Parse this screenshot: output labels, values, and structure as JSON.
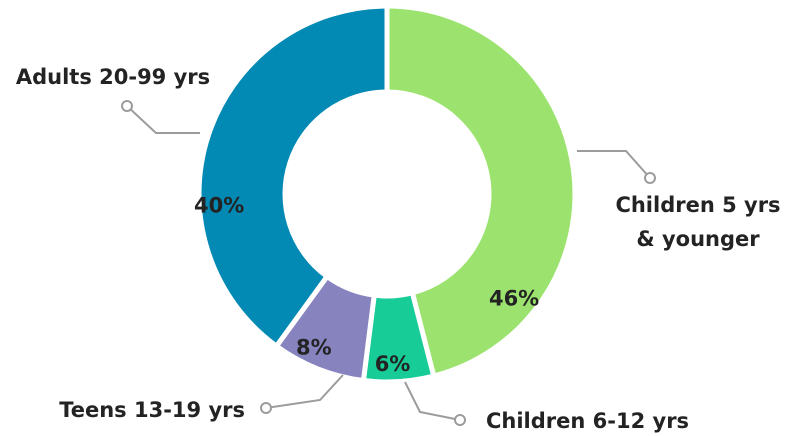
{
  "chart_data": {
    "type": "pie",
    "donut": true,
    "title": "",
    "categories": [
      "Children 5 yrs & younger",
      "Children 6-12 yrs",
      "Teens 13-19 yrs",
      "Adults 20-99 yrs"
    ],
    "label_lines": [
      [
        "Children 5 yrs",
        "& younger"
      ],
      [
        "Children 6-12 yrs"
      ],
      [
        "Teens 13-19 yrs"
      ],
      [
        "Adults 20-99 yrs"
      ]
    ],
    "values": [
      46,
      6,
      8,
      40
    ],
    "value_labels": [
      "46%",
      "6%",
      "8%",
      "40%"
    ],
    "colors": [
      "#9be36e",
      "#17cc97",
      "#8683bf",
      "#0289b4"
    ],
    "legend": "none"
  }
}
